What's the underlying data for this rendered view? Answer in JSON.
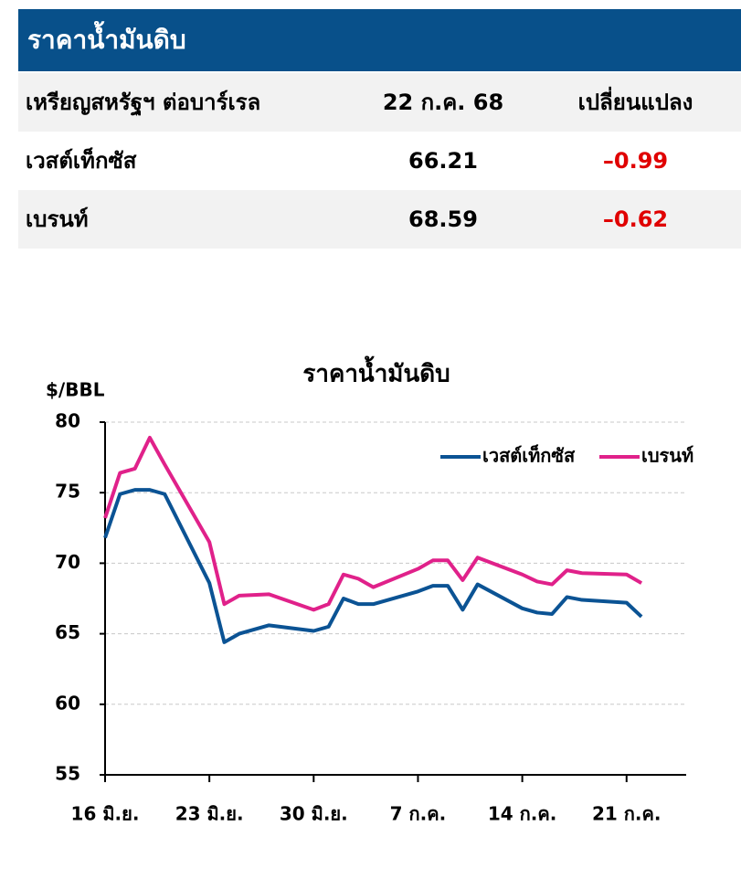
{
  "header": {
    "title": "ราคาน้ำมันดิบ"
  },
  "table": {
    "columns": [
      "เหรียญสหรัฐฯ ต่อบาร์เรล",
      "22 ก.ค. 68",
      "เปลี่ยนแปลง"
    ],
    "rows": [
      [
        "เวสต์เท็กซัส",
        "66.21",
        "–0.99"
      ],
      [
        "เบรนท์",
        "68.59",
        "–0.62"
      ]
    ]
  },
  "chart_data": {
    "type": "line",
    "title": "ราคาน้ำมันดิบ",
    "y_label": "$/BBL",
    "x": [
      0,
      1,
      2,
      3,
      4,
      7,
      8,
      9,
      11,
      14,
      15,
      16,
      17,
      18,
      21,
      22,
      23,
      24,
      25,
      28,
      29,
      30,
      31,
      32,
      35,
      36
    ],
    "xlim": [
      0,
      39
    ],
    "xticks": [
      {
        "value": 0,
        "label": "16 มิ.ย."
      },
      {
        "value": 7,
        "label": "23 มิ.ย."
      },
      {
        "value": 14,
        "label": "30 มิ.ย."
      },
      {
        "value": 21,
        "label": "7 ก.ค."
      },
      {
        "value": 28,
        "label": "14 ก.ค."
      },
      {
        "value": 35,
        "label": "21 ก.ค."
      }
    ],
    "ylim": [
      55,
      80
    ],
    "yticks": [
      55,
      60,
      65,
      70,
      75,
      80
    ],
    "grid": true,
    "legend": "top-right",
    "series": [
      {
        "name": "เวสต์เท็กซัส",
        "color": "#0b5394",
        "values": [
          71.8,
          74.9,
          75.2,
          75.2,
          74.9,
          68.6,
          64.4,
          65.0,
          65.6,
          65.2,
          65.5,
          67.5,
          67.1,
          67.1,
          68.0,
          68.4,
          68.4,
          66.7,
          68.5,
          66.8,
          66.5,
          66.4,
          67.6,
          67.4,
          67.2,
          66.21
        ]
      },
      {
        "name": "เบรนท์",
        "color": "#e0218a",
        "values": [
          73.2,
          76.4,
          76.7,
          78.9,
          77.0,
          71.5,
          67.1,
          67.7,
          67.8,
          66.7,
          67.1,
          69.2,
          68.9,
          68.3,
          69.6,
          70.2,
          70.2,
          68.8,
          70.4,
          69.2,
          68.7,
          68.5,
          69.5,
          69.3,
          69.2,
          68.59
        ]
      }
    ]
  }
}
